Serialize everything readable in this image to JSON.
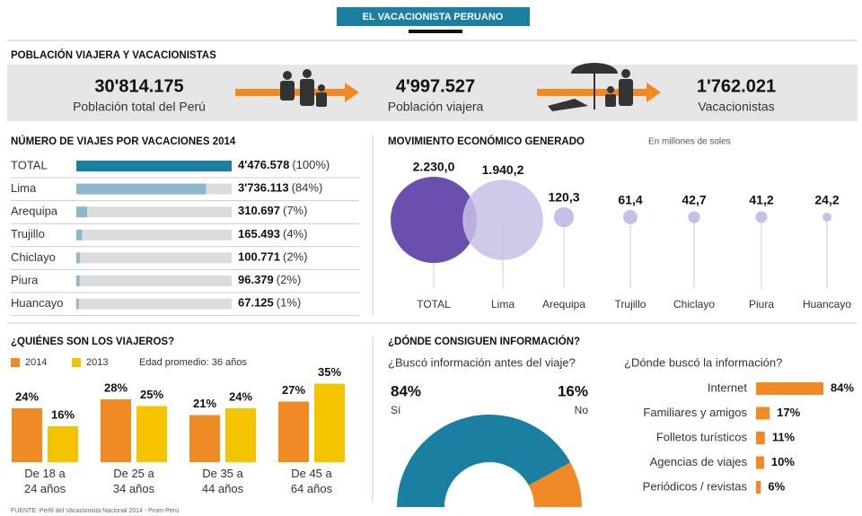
{
  "header": {
    "title": "EL VACACIONISTA PERUANO"
  },
  "population": {
    "title": "POBLACIÓN VIAJERA Y VACACIONISTAS",
    "stats": [
      {
        "value": "30'814.175",
        "label": "Población total del Perú"
      },
      {
        "value": "4'997.527",
        "label": "Población viajera"
      },
      {
        "value": "1'762.021",
        "label": "Vacacionistas"
      }
    ]
  },
  "info_section": {
    "title": "¿DÓNDE CONSIGUEN INFORMACIÓN?"
  },
  "chart_data": [
    {
      "type": "bar",
      "orientation": "horizontal",
      "title": "NÚMERO DE VIAJES POR VACACIONES 2014",
      "categories": [
        "TOTAL",
        "Lima",
        "Arequipa",
        "Trujillo",
        "Chiclayo",
        "Piura",
        "Huancayo"
      ],
      "values": [
        4476578,
        3736113,
        310697,
        165493,
        100771,
        96379,
        67125
      ],
      "value_labels": [
        "4'476.578",
        "3'736.113",
        "310.697",
        "165.493",
        "100.771",
        "96.379",
        "67.125"
      ],
      "percent_labels": [
        "(100%)",
        "(84%)",
        "(7%)",
        "(4%)",
        "(2%)",
        "(2%)",
        "(1%)"
      ],
      "colors": [
        "#1a7fa0",
        "#8db7cf",
        "#8db7cf",
        "#8db7cf",
        "#8db7cf",
        "#8db7cf",
        "#8db7cf"
      ],
      "track_color": "#dcdcdc",
      "xlim": [
        0,
        4476578
      ]
    },
    {
      "type": "bubble",
      "title": "MOVIMIENTO ECONÓMICO GENERADO",
      "subtitle": "En millones de soles",
      "categories": [
        "TOTAL",
        "Lima",
        "Arequipa",
        "Trujillo",
        "Chiclayo",
        "Piura",
        "Huancayo"
      ],
      "values": [
        2230.0,
        1940.2,
        120.3,
        61.4,
        42.7,
        41.2,
        24.2
      ],
      "value_labels": [
        "2.230,0",
        "1.940,2",
        "120,3",
        "61,4",
        "42,7",
        "41,2",
        "24,2"
      ],
      "colors": [
        "#6a4fae",
        "#c9bfe6",
        "#c9bfe6",
        "#c9bfe6",
        "#c9bfe6",
        "#c9bfe6",
        "#c9bfe6"
      ]
    },
    {
      "type": "bar",
      "title": "¿QUIÉNES SON LOS VIAJEROS?",
      "annotation": "Edad promedio: 36 años",
      "categories": [
        "De 18 a 24 años",
        "De 25 a 34 años",
        "De 35 a 44 años",
        "De 45 a 64 años"
      ],
      "series": [
        {
          "name": "2014",
          "color": "#f08a24",
          "values": [
            24,
            28,
            21,
            27
          ],
          "value_labels": [
            "24%",
            "28%",
            "21%",
            "27%"
          ]
        },
        {
          "name": "2013",
          "color": "#f5c400",
          "values": [
            16,
            25,
            24,
            35
          ],
          "value_labels": [
            "16%",
            "25%",
            "24%",
            "35%"
          ]
        }
      ],
      "ylim": [
        0,
        40
      ]
    },
    {
      "type": "donut",
      "title": "¿Buscó información antes del viaje?",
      "categories": [
        "Sí",
        "No"
      ],
      "values": [
        84,
        16
      ],
      "value_labels": [
        "84%",
        "16%"
      ],
      "colors": [
        "#1a7fa0",
        "#f08a24"
      ]
    },
    {
      "type": "bar",
      "orientation": "horizontal",
      "title": "¿Dónde buscó la información?",
      "categories": [
        "Internet",
        "Familiares y amigos",
        "Folletos turísticos",
        "Agencias de viajes",
        "Periódicos / revistas"
      ],
      "values": [
        84,
        17,
        11,
        10,
        6
      ],
      "value_labels": [
        "84%",
        "17%",
        "11%",
        "10%",
        "6%"
      ],
      "color": "#f08a24",
      "xlim": [
        0,
        84
      ]
    }
  ],
  "source": "FUENTE: Perfil del Vacacionista Nacional 2014 - Prom-Perú"
}
